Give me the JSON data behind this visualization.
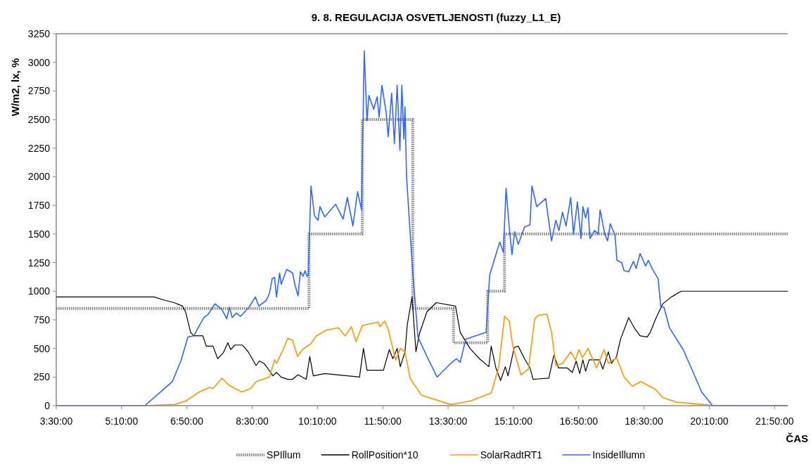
{
  "chart_data": {
    "type": "line",
    "title": "9. 8. REGULACIJA OSVETLJENOSTI (fuzzy_L1_E)",
    "xlabel": "ČAS",
    "ylabel": "W/m2, lx, %",
    "legend": "bottom",
    "xlim": [
      3.5,
      22.17
    ],
    "ylim": [
      0,
      3250
    ],
    "xticks": [
      {
        "value": 3.5,
        "label": "3:30:00"
      },
      {
        "value": 5.1667,
        "label": "5:10:00"
      },
      {
        "value": 6.8333,
        "label": "6:50:00"
      },
      {
        "value": 8.5,
        "label": "8:30:00"
      },
      {
        "value": 10.1667,
        "label": "10:10:00"
      },
      {
        "value": 11.8333,
        "label": "11:50:00"
      },
      {
        "value": 13.5,
        "label": "13:30:00"
      },
      {
        "value": 15.1667,
        "label": "15:10:00"
      },
      {
        "value": 16.8333,
        "label": "16:50:00"
      },
      {
        "value": 18.5,
        "label": "18:30:00"
      },
      {
        "value": 20.1667,
        "label": "20:10:00"
      },
      {
        "value": 21.8333,
        "label": "21:50:00"
      }
    ],
    "yticks": [
      0,
      250,
      500,
      750,
      1000,
      1250,
      1500,
      1750,
      2000,
      2250,
      2500,
      2750,
      3000,
      3250
    ],
    "series": [
      {
        "name": "SPIllum",
        "type": "step",
        "line_style": "dotted",
        "color": "#808080",
        "x": [
          3.5,
          9.95,
          11.31,
          12.6,
          13.64,
          14.51,
          14.94,
          22.17
        ],
        "values": [
          850,
          1500,
          2500,
          850,
          550,
          1000,
          1500,
          1500
        ]
      },
      {
        "name": "RollPosition*10",
        "type": "line",
        "color": "#000000",
        "x": [
          3.5,
          5.99,
          6.28,
          6.51,
          6.72,
          6.8,
          6.93,
          7.01,
          7.24,
          7.33,
          7.5,
          7.62,
          7.76,
          7.88,
          7.95,
          8.06,
          8.25,
          8.4,
          8.6,
          8.68,
          8.8,
          8.89,
          9.03,
          9.12,
          9.24,
          9.41,
          9.53,
          9.67,
          9.88,
          9.97,
          10.06,
          10.35,
          10.94,
          11.24,
          11.34,
          11.43,
          11.85,
          12.0,
          12.09,
          12.2,
          12.28,
          12.4,
          12.46,
          12.58,
          12.68,
          12.77,
          12.96,
          13.2,
          13.69,
          13.81,
          14.06,
          14.3,
          14.54,
          14.6,
          14.72,
          14.84,
          14.96,
          15.03,
          15.19,
          15.29,
          15.45,
          15.59,
          15.67,
          16.07,
          16.2,
          16.32,
          16.54,
          16.67,
          16.77,
          16.86,
          16.94,
          17.01,
          17.1,
          17.36,
          17.45,
          17.59,
          17.67,
          17.8,
          17.9,
          18.11,
          18.25,
          18.4,
          18.58,
          18.66,
          18.8,
          18.98,
          19.2,
          19.45,
          22.17
        ],
        "values": [
          950,
          950,
          920,
          900,
          870,
          820,
          640,
          610,
          610,
          520,
          520,
          410,
          460,
          550,
          490,
          530,
          530,
          470,
          350,
          390,
          370,
          330,
          260,
          290,
          250,
          230,
          230,
          270,
          230,
          430,
          260,
          280,
          260,
          250,
          500,
          310,
          310,
          490,
          410,
          500,
          340,
          470,
          710,
          950,
          470,
          630,
          820,
          900,
          870,
          640,
          500,
          410,
          340,
          520,
          330,
          220,
          340,
          260,
          510,
          520,
          410,
          330,
          230,
          240,
          440,
          330,
          330,
          290,
          390,
          280,
          400,
          300,
          400,
          400,
          320,
          470,
          370,
          430,
          580,
          770,
          680,
          610,
          600,
          640,
          760,
          890,
          950,
          1000,
          1000
        ]
      },
      {
        "name": "SolarRadtRT1",
        "type": "line",
        "color": "#ff9900",
        "x": [
          3.5,
          5.76,
          6.51,
          6.8,
          7.15,
          7.41,
          7.5,
          7.73,
          7.9,
          8.23,
          8.46,
          8.6,
          8.94,
          9.07,
          9.12,
          9.29,
          9.41,
          9.53,
          9.66,
          9.78,
          9.99,
          10.14,
          10.39,
          10.7,
          10.87,
          11.03,
          11.15,
          11.31,
          11.71,
          11.76,
          11.88,
          11.97,
          12.16,
          12.28,
          12.4,
          12.53,
          12.82,
          13.57,
          14.06,
          14.6,
          14.79,
          14.94,
          15.06,
          15.15,
          15.36,
          15.55,
          15.71,
          15.81,
          16.02,
          16.14,
          16.25,
          16.42,
          16.63,
          16.75,
          16.84,
          16.93,
          17.07,
          17.29,
          17.48,
          17.59,
          17.8,
          17.99,
          18.2,
          18.42,
          18.8,
          18.98,
          19.33,
          20.02,
          20.28,
          22.17
        ],
        "values": [
          0,
          0,
          10,
          40,
          120,
          160,
          150,
          240,
          180,
          120,
          150,
          210,
          250,
          400,
          370,
          490,
          590,
          570,
          430,
          490,
          540,
          610,
          660,
          680,
          610,
          690,
          560,
          700,
          730,
          690,
          740,
          670,
          400,
          500,
          470,
          240,
          90,
          10,
          40,
          110,
          330,
          780,
          740,
          520,
          270,
          320,
          760,
          790,
          800,
          640,
          350,
          370,
          470,
          400,
          490,
          420,
          500,
          330,
          490,
          370,
          420,
          250,
          170,
          210,
          140,
          70,
          30,
          10,
          0,
          0
        ]
      },
      {
        "name": "InsideIllumn",
        "type": "line",
        "color": "#3366ff",
        "x": [
          3.5,
          5.76,
          6.06,
          6.46,
          6.68,
          6.86,
          7.01,
          7.15,
          7.27,
          7.38,
          7.55,
          7.73,
          7.85,
          7.92,
          7.99,
          8.09,
          8.2,
          8.42,
          8.58,
          8.67,
          8.86,
          8.94,
          9.01,
          9.07,
          9.12,
          9.2,
          9.24,
          9.38,
          9.53,
          9.59,
          9.67,
          9.73,
          9.8,
          9.85,
          9.9,
          9.93,
          10.0,
          10.09,
          10.18,
          10.23,
          10.35,
          10.63,
          10.82,
          10.93,
          11.07,
          11.19,
          11.29,
          11.36,
          11.43,
          11.48,
          11.6,
          11.69,
          11.74,
          11.81,
          11.92,
          11.97,
          12.06,
          12.13,
          12.2,
          12.27,
          12.32,
          12.37,
          12.4,
          12.44,
          12.58,
          12.73,
          12.96,
          13.22,
          13.57,
          13.71,
          13.81,
          13.95,
          14.2,
          14.47,
          14.56,
          14.72,
          14.82,
          14.91,
          14.98,
          15.06,
          15.13,
          15.2,
          15.29,
          15.45,
          15.59,
          15.64,
          15.76,
          15.99,
          16.14,
          16.25,
          16.33,
          16.42,
          16.51,
          16.63,
          16.7,
          16.8,
          16.89,
          16.94,
          17.01,
          17.07,
          17.12,
          17.24,
          17.33,
          17.38,
          17.5,
          17.57,
          17.64,
          17.76,
          17.81,
          17.93,
          17.99,
          18.11,
          18.23,
          18.3,
          18.4,
          18.54,
          18.61,
          18.72,
          18.86,
          18.93,
          19.01,
          19.15,
          19.5,
          19.73,
          19.97,
          20.25,
          22.17
        ],
        "values": [
          0,
          0,
          90,
          210,
          390,
          600,
          610,
          700,
          770,
          800,
          890,
          840,
          760,
          860,
          770,
          810,
          780,
          860,
          950,
          870,
          920,
          980,
          1110,
          1120,
          950,
          1160,
          1060,
          1190,
          1160,
          1060,
          960,
          1170,
          1130,
          1180,
          1130,
          1140,
          1920,
          1660,
          1620,
          1740,
          1650,
          1760,
          1630,
          1820,
          1570,
          1870,
          1710,
          3100,
          2490,
          2710,
          2590,
          2700,
          2520,
          2800,
          2560,
          2350,
          2730,
          2290,
          2800,
          2230,
          2800,
          2330,
          2610,
          2000,
          1250,
          600,
          430,
          250,
          370,
          410,
          380,
          580,
          610,
          640,
          1140,
          1320,
          1430,
          1340,
          1900,
          1560,
          1320,
          1520,
          1410,
          1560,
          1580,
          1920,
          1740,
          1810,
          1440,
          1620,
          1530,
          1690,
          1570,
          1820,
          1500,
          1780,
          1460,
          1740,
          1640,
          1730,
          1460,
          1530,
          1500,
          1710,
          1500,
          1440,
          1590,
          1490,
          1270,
          1250,
          1180,
          1170,
          1260,
          1200,
          1330,
          1220,
          1270,
          1190,
          1110,
          860,
          860,
          680,
          490,
          310,
          120,
          0,
          0
        ]
      }
    ]
  }
}
